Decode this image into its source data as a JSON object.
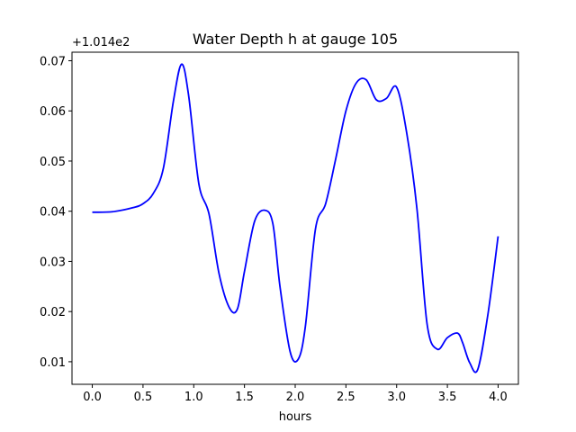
{
  "chart_data": {
    "type": "line",
    "title": "Water Depth h at gauge 105",
    "xlabel": "hours",
    "ylabel": "",
    "offset_label": "+1.014e2",
    "xlim": [
      -0.2,
      4.2
    ],
    "ylim": [
      0.0055,
      0.0717
    ],
    "xticks": [
      0.0,
      0.5,
      1.0,
      1.5,
      2.0,
      2.5,
      3.0,
      3.5,
      4.0
    ],
    "xtick_labels": [
      "0.0",
      "0.5",
      "1.0",
      "1.5",
      "2.0",
      "2.5",
      "3.0",
      "3.5",
      "4.0"
    ],
    "yticks": [
      0.01,
      0.02,
      0.03,
      0.04,
      0.05,
      0.06,
      0.07
    ],
    "ytick_labels": [
      "0.01",
      "0.02",
      "0.03",
      "0.04",
      "0.05",
      "0.06",
      "0.07"
    ],
    "grid": false,
    "line_color": "#0000ff",
    "series": [
      {
        "x": [
          0.0,
          0.2,
          0.4,
          0.5,
          0.6,
          0.7,
          0.8,
          0.88,
          0.95,
          1.05,
          1.15,
          1.25,
          1.35,
          1.43,
          1.5,
          1.6,
          1.7,
          1.78,
          1.85,
          1.95,
          2.03,
          2.1,
          2.2,
          2.3,
          2.4,
          2.5,
          2.6,
          2.7,
          2.8,
          2.9,
          3.0,
          3.1,
          3.2,
          3.3,
          3.4,
          3.5,
          3.6,
          3.65,
          3.72,
          3.8,
          3.9,
          4.0
        ],
        "y": [
          0.0398,
          0.0399,
          0.0407,
          0.0415,
          0.0435,
          0.0485,
          0.062,
          0.0693,
          0.063,
          0.0455,
          0.0395,
          0.0275,
          0.0208,
          0.0205,
          0.028,
          0.038,
          0.0402,
          0.0375,
          0.025,
          0.012,
          0.0105,
          0.017,
          0.0365,
          0.0415,
          0.0505,
          0.06,
          0.0655,
          0.0662,
          0.0622,
          0.0625,
          0.0647,
          0.0555,
          0.0405,
          0.0175,
          0.0125,
          0.0148,
          0.0157,
          0.0138,
          0.0098,
          0.0085,
          0.0195,
          0.035
        ]
      }
    ]
  }
}
